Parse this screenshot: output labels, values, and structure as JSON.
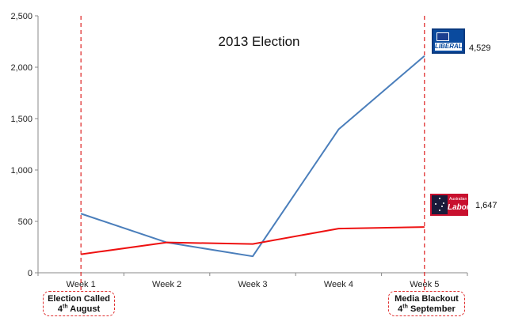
{
  "chart_data": {
    "type": "line",
    "title": "2013 Election",
    "categories": [
      "Week 1",
      "Week 2",
      "Week 3",
      "Week 4",
      "Week 5"
    ],
    "ylim": [
      0,
      2500
    ],
    "yticks": [
      "0",
      "500",
      "1,000",
      "1,500",
      "2,000",
      "2,500"
    ],
    "ytick_values": [
      0,
      500,
      1000,
      1500,
      2000,
      2500
    ],
    "grid": false,
    "series": [
      {
        "color": "#4a7ebb",
        "values": [
          575,
          295,
          160,
          1395,
          2110
        ]
      },
      {
        "color": "#ee1111",
        "values": [
          180,
          295,
          280,
          430,
          445
        ]
      }
    ],
    "end_labels": [
      {
        "party": "liberal",
        "text": "4,529"
      },
      {
        "party": "labor",
        "text": "1,647"
      }
    ],
    "annotations": [
      {
        "line1": "Election Called",
        "day": "4",
        "suffix": "th",
        "month": "August",
        "at": "Week 1"
      },
      {
        "line1": "Media Blackout",
        "day": "4",
        "suffix": "th",
        "month": "September",
        "at": "Week 5"
      }
    ],
    "marker_color": "#e03030"
  },
  "logos": {
    "liberal_text": "LIBERAL",
    "labor_small_text": "Australian",
    "labor_text": "Labor"
  }
}
